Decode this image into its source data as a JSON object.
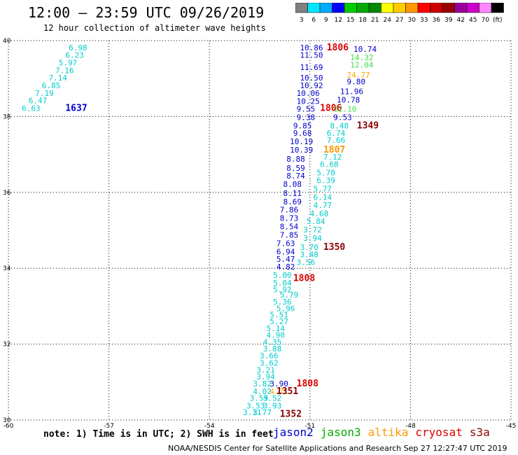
{
  "header": {
    "title": "12:00 — 23:59 UTC 09/26/2019",
    "subtitle": "12 hour collection of altimeter wave heights"
  },
  "color_scale": {
    "labels": [
      "3",
      "6",
      "9",
      "12",
      "15",
      "18",
      "21",
      "24",
      "27",
      "30",
      "33",
      "36",
      "39",
      "42",
      "45",
      "70",
      "(ft)"
    ],
    "colors": [
      "#808080",
      "#00e5ff",
      "#00aaff",
      "#0000ff",
      "#00cc00",
      "#00aa00",
      "#008800",
      "#ffff00",
      "#ffcc00",
      "#ff9900",
      "#ff0000",
      "#cc0000",
      "#990000",
      "#990099",
      "#cc00cc",
      "#ff88ff",
      "#000000"
    ]
  },
  "note": "note: 1) Time is in UTC; 2) SWH is in feet",
  "satellites": [
    {
      "name": "jason2",
      "color": "#0000cc"
    },
    {
      "name": "jason3",
      "color": "#00aa00"
    },
    {
      "name": "altika",
      "color": "#ff9900"
    },
    {
      "name": "cryosat",
      "color": "#dd0000"
    },
    {
      "name": "s3a",
      "color": "#880000"
    }
  ],
  "footer": "NOAA/NESDIS Center for Satellite Applications and Research   Sep 27 12:27:47 UTC 2019",
  "chart_data": {
    "type": "scatter",
    "xlim": [
      -60,
      -45
    ],
    "ylim": [
      30,
      40
    ],
    "x_ticks": [
      "-60",
      "-57",
      "-54",
      "-51",
      "-48",
      "-45"
    ],
    "y_ticks": [
      "30",
      "32",
      "34",
      "36",
      "38",
      "40"
    ],
    "grid": true,
    "labels": [
      {
        "x": -58.2,
        "y": 39.82,
        "text": "6.98",
        "color": "#00cccc"
      },
      {
        "x": -58.3,
        "y": 39.62,
        "text": "6.23",
        "color": "#00cccc"
      },
      {
        "x": -58.5,
        "y": 39.42,
        "text": "5.97",
        "color": "#00cccc"
      },
      {
        "x": -58.6,
        "y": 39.22,
        "text": "7.16",
        "color": "#00cccc"
      },
      {
        "x": -58.8,
        "y": 39.02,
        "text": "7.14",
        "color": "#00cccc"
      },
      {
        "x": -59.0,
        "y": 38.82,
        "text": "6.85",
        "color": "#00cccc"
      },
      {
        "x": -59.2,
        "y": 38.62,
        "text": "7.19",
        "color": "#00cccc"
      },
      {
        "x": -59.4,
        "y": 38.42,
        "text": "6.47",
        "color": "#00cccc"
      },
      {
        "x": -59.6,
        "y": 38.22,
        "text": "6.63",
        "color": "#00cccc"
      },
      {
        "x": -58.3,
        "y": 38.22,
        "text": "1637",
        "color": "#0000cc",
        "big": true
      },
      {
        "x": -51.3,
        "y": 39.82,
        "text": "10.86",
        "color": "#0000cc"
      },
      {
        "x": -51.3,
        "y": 39.62,
        "text": "11.50",
        "color": "#0000cc"
      },
      {
        "x": -51.3,
        "y": 39.3,
        "text": "11.69",
        "color": "#0000cc"
      },
      {
        "x": -51.3,
        "y": 39.02,
        "text": "10.50",
        "color": "#0000cc"
      },
      {
        "x": -51.3,
        "y": 38.82,
        "text": "10.92",
        "color": "#0000cc"
      },
      {
        "x": -51.4,
        "y": 38.62,
        "text": "10.06",
        "color": "#0000cc"
      },
      {
        "x": -51.4,
        "y": 38.4,
        "text": "10.25",
        "color": "#0000cc"
      },
      {
        "x": -51.4,
        "y": 38.2,
        "text": "9.55",
        "color": "#0000cc"
      },
      {
        "x": -51.4,
        "y": 37.98,
        "text": "9.38",
        "color": "#0000cc"
      },
      {
        "x": -51.5,
        "y": 37.76,
        "text": "9.85",
        "color": "#0000cc"
      },
      {
        "x": -51.5,
        "y": 37.56,
        "text": "9.68",
        "color": "#0000cc"
      },
      {
        "x": -51.6,
        "y": 37.34,
        "text": "10.19",
        "color": "#0000cc"
      },
      {
        "x": -51.6,
        "y": 37.12,
        "text": "10.39",
        "color": "#0000cc"
      },
      {
        "x": -50.5,
        "y": 39.82,
        "text": "1806",
        "color": "#dd0000",
        "big": true
      },
      {
        "x": -49.7,
        "y": 39.78,
        "text": "10.74",
        "color": "#0000cc"
      },
      {
        "x": -49.8,
        "y": 39.56,
        "text": "14.32",
        "color": "#44dd44"
      },
      {
        "x": -49.8,
        "y": 39.36,
        "text": "12.04",
        "color": "#44dd44"
      },
      {
        "x": -49.9,
        "y": 39.1,
        "text": "24.77",
        "color": "#ffaa00"
      },
      {
        "x": -49.9,
        "y": 38.92,
        "text": "9.80",
        "color": "#0000cc"
      },
      {
        "x": -50.1,
        "y": 38.66,
        "text": "11.96",
        "color": "#0000cc"
      },
      {
        "x": -50.2,
        "y": 38.44,
        "text": "10.78",
        "color": "#0000cc"
      },
      {
        "x": -50.7,
        "y": 38.22,
        "text": "1806",
        "color": "#dd0000",
        "big": true
      },
      {
        "x": -50.3,
        "y": 38.2,
        "text": "12.10",
        "color": "#44dd44"
      },
      {
        "x": -50.3,
        "y": 37.98,
        "text": "9.53",
        "color": "#0000cc"
      },
      {
        "x": -50.4,
        "y": 37.76,
        "text": "8.48",
        "color": "#00cccc"
      },
      {
        "x": -49.6,
        "y": 37.76,
        "text": "1349",
        "color": "#880000",
        "big": true
      },
      {
        "x": -50.5,
        "y": 37.56,
        "text": "6.74",
        "color": "#00cccc"
      },
      {
        "x": -50.5,
        "y": 37.38,
        "text": "7.66",
        "color": "#00cccc"
      },
      {
        "x": -50.6,
        "y": 37.12,
        "text": "1807",
        "color": "#ff9900",
        "big": true
      },
      {
        "x": -50.6,
        "y": 36.94,
        "text": "7.12",
        "color": "#00cccc"
      },
      {
        "x": -50.7,
        "y": 36.74,
        "text": "6.68",
        "color": "#00cccc"
      },
      {
        "x": -50.8,
        "y": 36.52,
        "text": "5.78",
        "color": "#00cccc"
      },
      {
        "x": -50.8,
        "y": 36.32,
        "text": "6.39",
        "color": "#00cccc"
      },
      {
        "x": -50.9,
        "y": 36.1,
        "text": "5.77",
        "color": "#00cccc"
      },
      {
        "x": -50.9,
        "y": 35.88,
        "text": "6.14",
        "color": "#00cccc"
      },
      {
        "x": -50.9,
        "y": 35.66,
        "text": "4.77",
        "color": "#00cccc"
      },
      {
        "x": -51.0,
        "y": 35.44,
        "text": "4.68",
        "color": "#00cccc"
      },
      {
        "x": -51.1,
        "y": 35.24,
        "text": "5.84",
        "color": "#00cccc"
      },
      {
        "x": -51.2,
        "y": 35.02,
        "text": "3.72",
        "color": "#00cccc"
      },
      {
        "x": -51.2,
        "y": 34.8,
        "text": "3.94",
        "color": "#00cccc"
      },
      {
        "x": -51.3,
        "y": 34.56,
        "text": "3.70",
        "color": "#00cccc"
      },
      {
        "x": -50.6,
        "y": 34.56,
        "text": "1350",
        "color": "#880000",
        "big": true
      },
      {
        "x": -51.3,
        "y": 34.36,
        "text": "3.48",
        "color": "#00cccc"
      },
      {
        "x": -51.4,
        "y": 34.16,
        "text": "3.56",
        "color": "#00cccc"
      },
      {
        "x": -51.7,
        "y": 36.88,
        "text": "8.88",
        "color": "#0000cc"
      },
      {
        "x": -51.7,
        "y": 36.64,
        "text": "8.59",
        "color": "#0000cc"
      },
      {
        "x": -51.7,
        "y": 36.44,
        "text": "8.74",
        "color": "#0000cc"
      },
      {
        "x": -51.8,
        "y": 36.22,
        "text": "8.08",
        "color": "#0000cc"
      },
      {
        "x": -51.8,
        "y": 35.98,
        "text": "8.11",
        "color": "#0000cc"
      },
      {
        "x": -51.8,
        "y": 35.76,
        "text": "8.69",
        "color": "#0000cc"
      },
      {
        "x": -51.9,
        "y": 35.54,
        "text": "7.86",
        "color": "#0000cc"
      },
      {
        "x": -51.9,
        "y": 35.32,
        "text": "8.73",
        "color": "#0000cc"
      },
      {
        "x": -51.9,
        "y": 35.1,
        "text": "8.54",
        "color": "#0000cc"
      },
      {
        "x": -51.9,
        "y": 34.88,
        "text": "7.85",
        "color": "#0000cc"
      },
      {
        "x": -52.0,
        "y": 34.66,
        "text": "7.63",
        "color": "#0000cc"
      },
      {
        "x": -52.0,
        "y": 34.44,
        "text": "6.94",
        "color": "#0000cc"
      },
      {
        "x": -52.0,
        "y": 34.24,
        "text": "5.47",
        "color": "#0000cc"
      },
      {
        "x": -52.0,
        "y": 34.04,
        "text": "4.82",
        "color": "#0000cc"
      },
      {
        "x": -52.1,
        "y": 33.82,
        "text": "5.00",
        "color": "#00cccc"
      },
      {
        "x": -52.1,
        "y": 33.62,
        "text": "5.04",
        "color": "#00cccc"
      },
      {
        "x": -52.1,
        "y": 33.44,
        "text": "5.92",
        "color": "#00cccc"
      },
      {
        "x": -51.9,
        "y": 33.3,
        "text": "5.79",
        "color": "#00cccc"
      },
      {
        "x": -52.1,
        "y": 33.12,
        "text": "5.36",
        "color": "#00cccc"
      },
      {
        "x": -52.0,
        "y": 32.94,
        "text": "5.96",
        "color": "#00cccc"
      },
      {
        "x": -52.2,
        "y": 32.78,
        "text": "5.51",
        "color": "#00cccc"
      },
      {
        "x": -52.2,
        "y": 32.6,
        "text": "5.27",
        "color": "#00cccc"
      },
      {
        "x": -52.3,
        "y": 32.42,
        "text": "5.14",
        "color": "#00cccc"
      },
      {
        "x": -52.3,
        "y": 32.24,
        "text": "4.90",
        "color": "#00cccc"
      },
      {
        "x": -52.4,
        "y": 32.06,
        "text": "4.35",
        "color": "#00cccc"
      },
      {
        "x": -52.4,
        "y": 31.88,
        "text": "3.88",
        "color": "#00cccc"
      },
      {
        "x": -52.5,
        "y": 31.7,
        "text": "3.66",
        "color": "#00cccc"
      },
      {
        "x": -52.5,
        "y": 31.5,
        "text": "3.62",
        "color": "#00cccc"
      },
      {
        "x": -52.6,
        "y": 31.32,
        "text": "3.21",
        "color": "#00cccc"
      },
      {
        "x": -52.6,
        "y": 31.14,
        "text": "3.94",
        "color": "#00cccc"
      },
      {
        "x": -52.7,
        "y": 30.96,
        "text": "3.82",
        "color": "#00cccc"
      },
      {
        "x": -52.2,
        "y": 30.96,
        "text": "3.90",
        "color": "#0000cc"
      },
      {
        "x": -51.4,
        "y": 30.96,
        "text": "1808",
        "color": "#dd0000",
        "big": true
      },
      {
        "x": -52.7,
        "y": 30.76,
        "text": "4.02",
        "color": "#00cccc"
      },
      {
        "x": -52.2,
        "y": 30.76,
        "text": "4.71",
        "color": "#ffaa00"
      },
      {
        "x": -52.0,
        "y": 30.76,
        "text": "1351",
        "color": "#880000",
        "big": true
      },
      {
        "x": -52.8,
        "y": 30.58,
        "text": "3.59",
        "color": "#00cccc"
      },
      {
        "x": -52.4,
        "y": 30.58,
        "text": "3.52",
        "color": "#00cccc"
      },
      {
        "x": -52.9,
        "y": 30.38,
        "text": "3.53",
        "color": "#00cccc"
      },
      {
        "x": -52.4,
        "y": 30.38,
        "text": "3.93",
        "color": "#00cccc"
      },
      {
        "x": -53.0,
        "y": 30.2,
        "text": "3.11",
        "color": "#00cccc"
      },
      {
        "x": -52.7,
        "y": 30.2,
        "text": "3.77",
        "color": "#00cccc"
      },
      {
        "x": -51.9,
        "y": 30.16,
        "text": "1352",
        "color": "#880000",
        "big": true
      },
      {
        "x": -51.5,
        "y": 33.74,
        "text": "1808",
        "color": "#dd0000",
        "big": true
      }
    ]
  }
}
